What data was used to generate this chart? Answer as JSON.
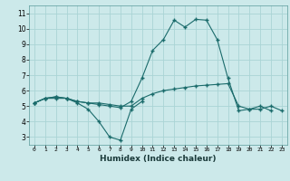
{
  "x": [
    0,
    1,
    2,
    3,
    4,
    5,
    6,
    7,
    8,
    9,
    10,
    11,
    12,
    13,
    14,
    15,
    16,
    17,
    18,
    19,
    20,
    21,
    22,
    23
  ],
  "line1_x": [
    0,
    1,
    2,
    3,
    4,
    5,
    6,
    7,
    8,
    9,
    10
  ],
  "line1_y": [
    5.2,
    5.5,
    5.5,
    5.5,
    5.2,
    4.8,
    4.0,
    3.0,
    2.8,
    4.8,
    5.3
  ],
  "line2_x": [
    0,
    1,
    2,
    3,
    4,
    5,
    6,
    7,
    8,
    9,
    10,
    11,
    12,
    13,
    14,
    15,
    16,
    17,
    18,
    19,
    20,
    21,
    22
  ],
  "line2_y": [
    5.2,
    5.5,
    5.6,
    5.5,
    5.3,
    5.2,
    5.1,
    5.0,
    4.9,
    5.3,
    6.8,
    8.6,
    9.3,
    10.55,
    10.1,
    10.6,
    10.55,
    9.3,
    6.8,
    4.7,
    4.8,
    5.0,
    4.7
  ],
  "line3_x": [
    0,
    1,
    2,
    3,
    4,
    5,
    6,
    7,
    8,
    9,
    10,
    11,
    12,
    13,
    14,
    15,
    16,
    17,
    18,
    19,
    20,
    21,
    22,
    23
  ],
  "line3_y": [
    5.2,
    5.5,
    5.6,
    5.5,
    5.3,
    5.2,
    5.2,
    5.1,
    5.0,
    5.0,
    5.5,
    5.8,
    6.0,
    6.1,
    6.2,
    6.3,
    6.35,
    6.4,
    6.45,
    5.0,
    4.8,
    4.8,
    5.0,
    4.7
  ],
  "bg_color": "#cce9ea",
  "line_color": "#1a6b6b",
  "grid_color": "#aad4d5",
  "xlabel": "Humidex (Indice chaleur)",
  "xlim": [
    -0.5,
    23.5
  ],
  "ylim": [
    2.5,
    11.5
  ],
  "yticks": [
    3,
    4,
    5,
    6,
    7,
    8,
    9,
    10,
    11
  ],
  "xticks": [
    0,
    1,
    2,
    3,
    4,
    5,
    6,
    7,
    8,
    9,
    10,
    11,
    12,
    13,
    14,
    15,
    16,
    17,
    18,
    19,
    20,
    21,
    22,
    23
  ],
  "xtick_labels": [
    "0",
    "1",
    "2",
    "3",
    "4",
    "5",
    "6",
    "7",
    "8",
    "9",
    "10",
    "11",
    "12",
    "13",
    "14",
    "15",
    "16",
    "17",
    "18",
    "19",
    "20",
    "21",
    "22",
    "23"
  ]
}
